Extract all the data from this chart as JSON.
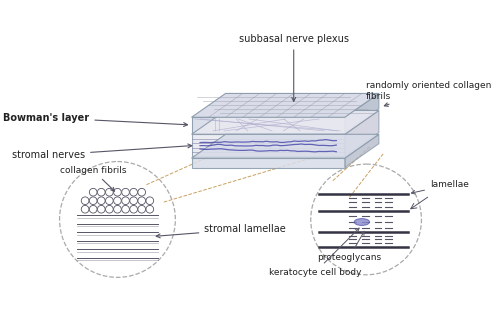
{
  "bg_color": "#ffffff",
  "labels": {
    "subbasal_nerve_plexus": "subbasal nerve plexus",
    "randomly_oriented": "randomly oriented collagen\nfibrils",
    "bowmans_layer": "Bowman's layer",
    "stromal_nerves": "stromal nerves",
    "collagen_fibrils": "collagen fibrils",
    "stromal_lamellae": "stromal lamellae",
    "lamellae": "lamellae",
    "proteoglycans": "proteoglycans",
    "keratocyte_cell_body": "keratocyte cell body"
  },
  "colors": {
    "box_fill": "#d8dce8",
    "box_edge": "#8899aa",
    "nerve_color": "#4444aa",
    "arrow_color": "#555566",
    "dashed_line": "#c8a060",
    "circle_edge": "#aaaaaa",
    "fibril_color": "#555566",
    "text_color": "#222222",
    "keratocyte_color": "#6666bb"
  }
}
